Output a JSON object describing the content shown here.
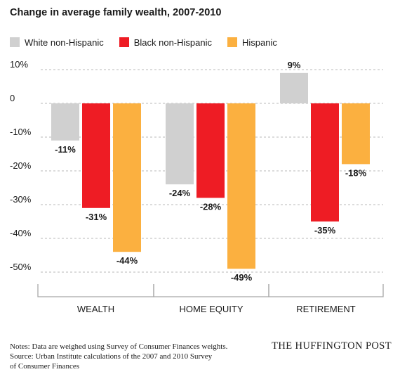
{
  "title": "Change in average family wealth, 2007-2010",
  "legend": [
    {
      "name": "White non-Hispanic",
      "color": "#d0d0d0"
    },
    {
      "name": "Black non-Hispanic",
      "color": "#ee1c24"
    },
    {
      "name": "Hispanic",
      "color": "#fbb040"
    }
  ],
  "chart_data": {
    "type": "bar",
    "title": "Change in average family wealth, 2007-2010",
    "categories": [
      "WEALTH",
      "HOME EQUITY",
      "RETIREMENT"
    ],
    "series": [
      {
        "name": "White non-Hispanic",
        "values": [
          -11,
          -24,
          9
        ],
        "color": "#d0d0d0"
      },
      {
        "name": "Black non-Hispanic",
        "values": [
          -31,
          -28,
          -35
        ],
        "color": "#ee1c24"
      },
      {
        "name": "Hispanic",
        "values": [
          -44,
          -49,
          -18
        ],
        "color": "#fbb040"
      }
    ],
    "value_labels": [
      [
        "-11%",
        "-24%",
        "9%"
      ],
      [
        "-31%",
        "-28%",
        "-35%"
      ],
      [
        "-44%",
        "-49%",
        "-18%"
      ]
    ],
    "yticks": [
      10,
      0,
      -10,
      -20,
      -30,
      -40,
      -50
    ],
    "ytick_labels": [
      "10%",
      "0",
      "-10%",
      "-20%",
      "-30%",
      "-40%",
      "-50%"
    ],
    "ylim": [
      -50,
      10
    ],
    "xlabel": "",
    "ylabel": "",
    "grid": true,
    "legend_position": "top-left"
  },
  "notes": [
    "Notes: Data are weighed using Survey of Consumer Finances weights.",
    "Source: Urban Institute calculations of the 2007 and 2010 Survey",
    "of Consumer Finances"
  ],
  "source_logo": "THE HUFFINGTON POST"
}
